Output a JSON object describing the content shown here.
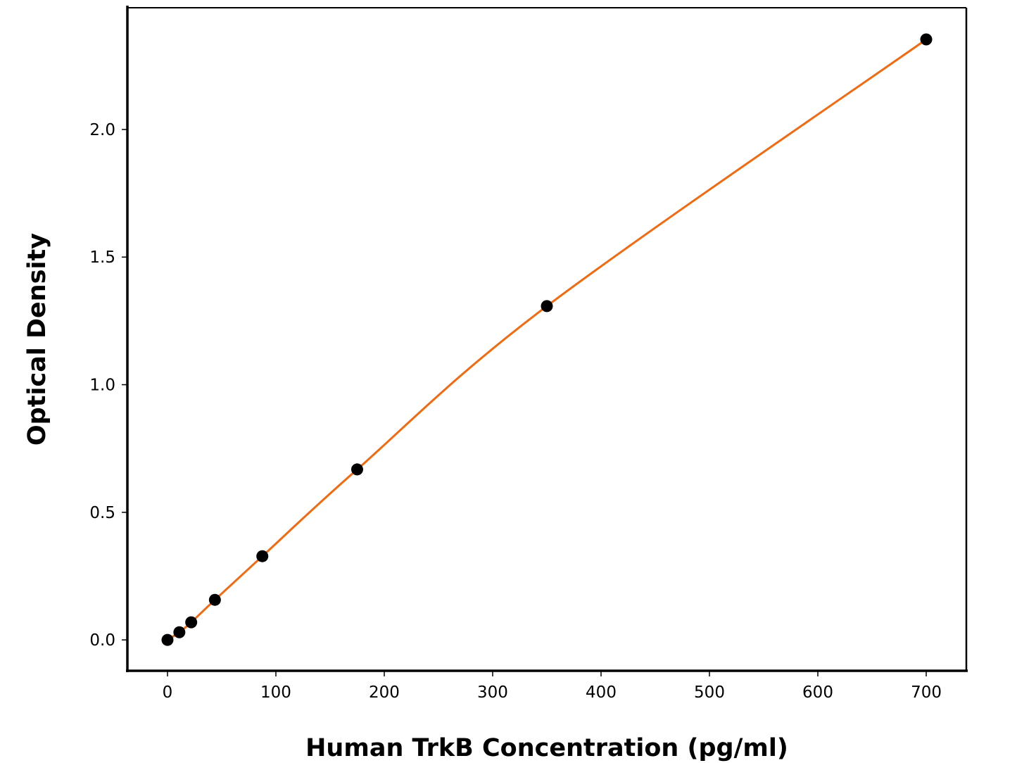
{
  "chart_data": {
    "type": "scatter",
    "title": "",
    "xlabel": "Human TrkB Concentration (pg/ml)",
    "ylabel": "Optical Density",
    "xlim": [
      -37,
      737
    ],
    "ylim": [
      -0.121,
      2.477
    ],
    "xticks": [
      0,
      100,
      200,
      300,
      400,
      500,
      600,
      700
    ],
    "xtick_labels": [
      "0",
      "100",
      "200",
      "300",
      "400",
      "500",
      "600",
      "700"
    ],
    "yticks": [
      0.0,
      0.5,
      1.0,
      1.5,
      2.0
    ],
    "ytick_labels": [
      "0.0",
      "0.5",
      "1.0",
      "1.5",
      "2.0"
    ],
    "grid": false,
    "series": [
      {
        "x": [
          0,
          10.94,
          21.88,
          43.75,
          87.5,
          175,
          350,
          700
        ],
        "y": [
          0.0,
          0.03,
          0.069,
          0.157,
          0.328,
          0.668,
          1.308,
          2.353
        ],
        "marker_color": "#000000",
        "fit_line_color": "#f26a10"
      }
    ]
  }
}
